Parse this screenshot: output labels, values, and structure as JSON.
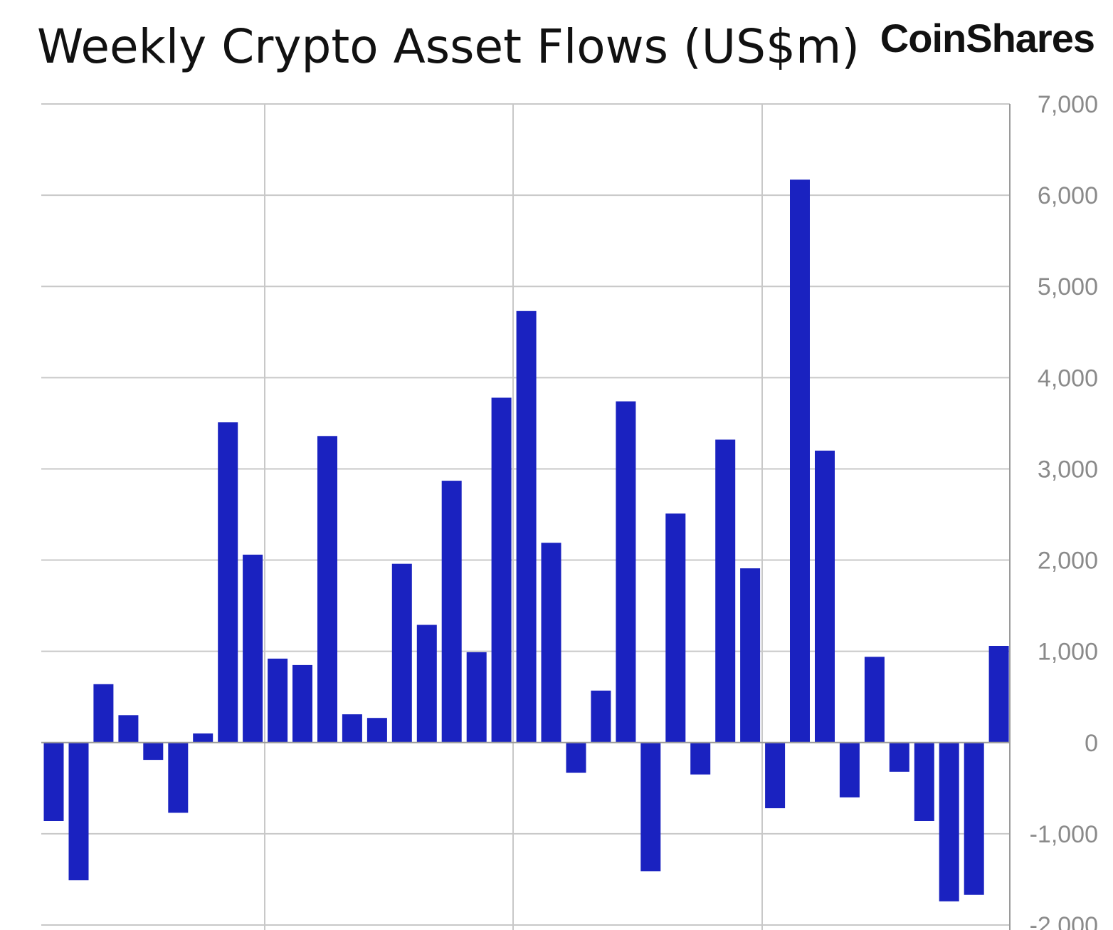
{
  "header": {
    "title": "Weekly Crypto Asset Flows (US$m)",
    "brand": "CoinShares"
  },
  "colors": {
    "bar": "#1A22C0",
    "grid": "#c8c8c8",
    "axis_line": "#9a9a9a",
    "tick_text": "#8a8a8a"
  },
  "chart_data": {
    "type": "bar",
    "title": "Weekly Crypto Asset Flows (US$m)",
    "xlabel": "",
    "ylabel": "",
    "ylim": [
      -2000,
      7000
    ],
    "y_axis_position": "right",
    "grid": true,
    "legend": "none",
    "y_ticks": [
      {
        "value": 7000,
        "label": "7,000"
      },
      {
        "value": 6000,
        "label": "6,000"
      },
      {
        "value": 5000,
        "label": "5,000"
      },
      {
        "value": 4000,
        "label": "4,000"
      },
      {
        "value": 3000,
        "label": "3,000"
      },
      {
        "value": 2000,
        "label": "2,000"
      },
      {
        "value": 1000,
        "label": "1,000"
      },
      {
        "value": 0,
        "label": "0"
      },
      {
        "value": -1000,
        "label": "-1,000"
      },
      {
        "value": -2000,
        "label": "-2,000"
      }
    ],
    "values": [
      -860,
      -1510,
      640,
      300,
      -190,
      -770,
      100,
      3510,
      2060,
      920,
      850,
      3360,
      310,
      270,
      1960,
      1290,
      2870,
      990,
      3780,
      4730,
      2190,
      -330,
      570,
      3740,
      -1410,
      2510,
      -350,
      3320,
      1910,
      -720,
      6170,
      3200,
      -600,
      940,
      -320,
      -860,
      -1740,
      -1670,
      1060
    ]
  }
}
